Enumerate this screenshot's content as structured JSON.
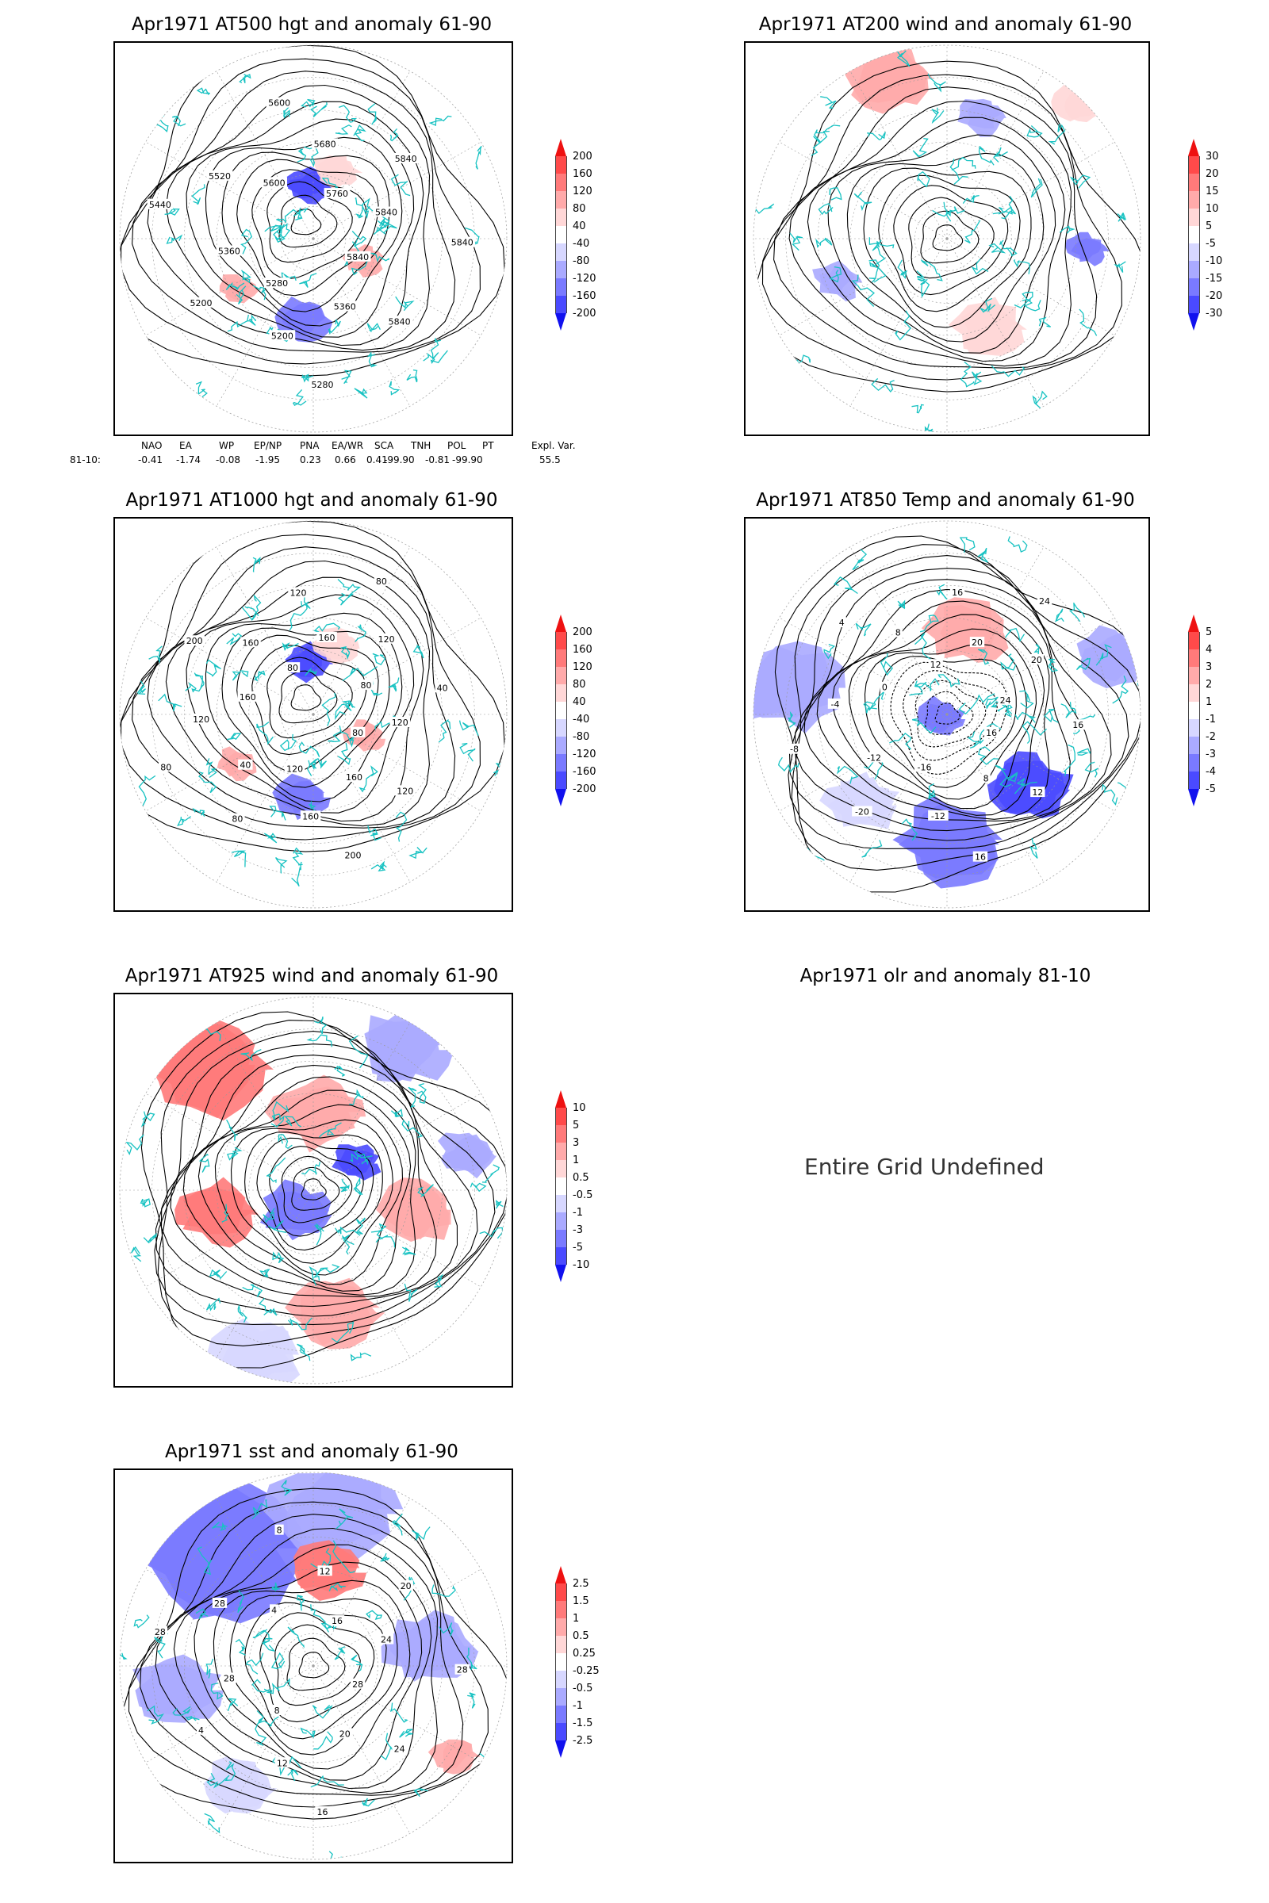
{
  "panels": [
    {
      "title": "Apr1971 AT500 hgt and anomaly 61-90",
      "contour_labels": [
        "5840",
        "5840",
        "5360",
        "5280",
        "5200",
        "5280",
        "5200",
        "5360",
        "5440",
        "5520",
        "5600",
        "5600",
        "5680",
        "5760",
        "5840",
        "5840",
        "5840"
      ],
      "colorbar": [
        "200",
        "160",
        "120",
        "80",
        "40",
        "-40",
        "-80",
        "-120",
        "-160",
        "-200"
      ]
    },
    {
      "title": "Apr1971 AT200 wind and anomaly 61-90",
      "colorbar": [
        "30",
        "20",
        "15",
        "10",
        "5",
        "-5",
        "-10",
        "-15",
        "-20",
        "-30"
      ]
    },
    {
      "title": "Apr1971 AT1000 hgt and anomaly 61-90",
      "contour_labels": [
        "80",
        "120",
        "160",
        "200",
        "160",
        "120",
        "80",
        "40",
        "80",
        "120",
        "160",
        "200",
        "160",
        "80",
        "120",
        "160",
        "80",
        "120",
        "80",
        "40",
        "120"
      ],
      "colorbar": [
        "200",
        "160",
        "120",
        "80",
        "40",
        "-40",
        "-80",
        "-120",
        "-160",
        "-200"
      ]
    },
    {
      "title": "Apr1971 AT850 Temp and anomaly 61-90",
      "contour_labels": [
        "16",
        "12",
        "8",
        "16",
        "-12",
        "-16",
        "-20",
        "-12",
        "-8",
        "-4",
        "0",
        "4",
        "8",
        "12",
        "16",
        "20",
        "24",
        "20",
        "24",
        "16"
      ],
      "colorbar": [
        "5",
        "4",
        "3",
        "2",
        "1",
        "-1",
        "-2",
        "-3",
        "-4",
        "-5"
      ]
    },
    {
      "title": "Apr1971 AT925 wind and anomaly 61-90",
      "colorbar": [
        "10",
        "5",
        "3",
        "1",
        "0.5",
        "-0.5",
        "-1",
        "-3",
        "-5",
        "-10"
      ]
    },
    {
      "title": "Apr1971 olr and anomaly 81-10",
      "message": "Entire Grid Undefined"
    },
    {
      "title": "Apr1971 sst and anomaly 61-90",
      "contour_labels": [
        "28",
        "24",
        "20",
        "16",
        "12",
        "8",
        "4",
        "28",
        "28",
        "28",
        "4",
        "8",
        "12",
        "16",
        "20",
        "24",
        "28"
      ],
      "colorbar": [
        "2.5",
        "1.5",
        "1",
        "0.5",
        "0.25",
        "-0.25",
        "-0.5",
        "-1",
        "-1.5",
        "-2.5"
      ]
    }
  ],
  "teleconnections": {
    "headers": [
      "NAO",
      "EA",
      "WP",
      "EP/NP",
      "PNA",
      "EA/WR",
      "SCA",
      "TNH",
      "POL",
      "PT",
      "Expl. Var."
    ],
    "row_label": "81-10:",
    "values": [
      "-0.41",
      "-1.74",
      "-0.08",
      "-1.95",
      "0.23",
      "0.66",
      "0.41",
      "-99.90",
      "-0.81",
      "-99.90",
      "55.5"
    ]
  },
  "colors": {
    "positive_anomaly": [
      "#ffd7d7",
      "#ffaaaa",
      "#ff7a7a",
      "#ff4a4a",
      "#ee1111"
    ],
    "negative_anomaly": [
      "#d7d7ff",
      "#aaaaff",
      "#7a7aff",
      "#4a4aff",
      "#1111ee"
    ],
    "coastline": "#18c2c2",
    "contour": "#000000"
  }
}
